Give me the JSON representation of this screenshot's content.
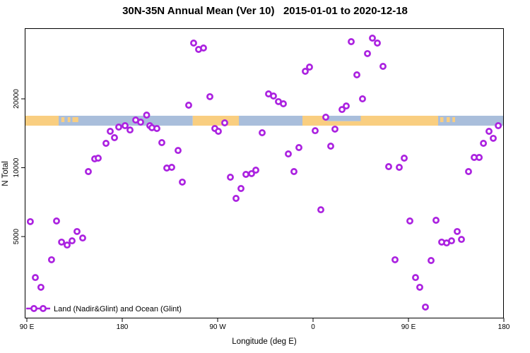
{
  "chart_data": {
    "type": "scatter",
    "title": "30N-35N Annual Mean (Ver 10)   2015-01-01 to 2020-12-18",
    "xlabel": "Longitude (deg E)",
    "ylabel": "N Total",
    "legend": "Land (Nadir&Glint) and Ocean (Glint)",
    "legend_position": "bottom-left",
    "marker": {
      "shape": "open-circle",
      "color": "#AB22E0"
    },
    "colors": {
      "point": "#AB22E0",
      "land": "#F9CE80",
      "ocean": "#A9BEDB",
      "frame": "#000000"
    },
    "x_axis": {
      "label": "Longitude (deg E)",
      "range_deg_e": [
        88,
        540.5
      ],
      "ticks": [
        {
          "value": 90,
          "label": "90 E"
        },
        {
          "value": 180,
          "label": "180"
        },
        {
          "value": 270,
          "label": "90 W"
        },
        {
          "value": 360,
          "label": "0"
        },
        {
          "value": 450,
          "label": "90 E"
        },
        {
          "value": 540,
          "label": "180"
        }
      ]
    },
    "y_axis": {
      "label": "N Total",
      "scale": "log",
      "range": [
        2200,
        40700
      ],
      "ticks": [
        {
          "value": 5000,
          "label": "5000"
        },
        {
          "value": 10000,
          "label": "10000"
        },
        {
          "value": 20000,
          "label": "20000"
        }
      ],
      "grid": false
    },
    "map_band": {
      "description": "30N-35N land/ocean map strip drawn across the plot",
      "value_top": 16870,
      "value_bottom": 15270,
      "segments": [
        {
          "from": 88.0,
          "to": 120.0,
          "surface": "land"
        },
        {
          "from": 120.0,
          "to": 246.5,
          "surface": "ocean"
        },
        {
          "from": 246.5,
          "to": 290.0,
          "surface": "land"
        },
        {
          "from": 290.0,
          "to": 350.0,
          "surface": "ocean"
        },
        {
          "from": 350.0,
          "to": 373.0,
          "surface": "land"
        },
        {
          "from": 373.0,
          "to": 405.0,
          "surface": "mixed"
        },
        {
          "from": 405.0,
          "to": 478.0,
          "surface": "land"
        },
        {
          "from": 478.0,
          "to": 540.5,
          "surface": "ocean"
        }
      ],
      "islands": [
        {
          "from": 122.5,
          "to": 125.5
        },
        {
          "from": 128.5,
          "to": 131.0
        },
        {
          "from": 133.0,
          "to": 138.5
        },
        {
          "from": 480.0,
          "to": 483.0
        },
        {
          "from": 486.0,
          "to": 489.0
        },
        {
          "from": 491.5,
          "to": 494.0
        }
      ]
    },
    "points": [
      [
        203.0,
        16980
      ],
      [
        192.7,
        16160
      ],
      [
        197.3,
        15820
      ],
      [
        206.0,
        15270
      ],
      [
        208.0,
        14950
      ],
      [
        212.7,
        14840
      ],
      [
        176.7,
        15050
      ],
      [
        182.7,
        15270
      ],
      [
        187.3,
        14620
      ],
      [
        168.7,
        14420
      ],
      [
        172.7,
        13530
      ],
      [
        164.7,
        12780
      ],
      [
        217.3,
        12870
      ],
      [
        232.7,
        11900
      ],
      [
        154.0,
        10930
      ],
      [
        157.3,
        11010
      ],
      [
        148.0,
        9620
      ],
      [
        222.0,
        9970
      ],
      [
        226.7,
        10040
      ],
      [
        236.7,
        8650
      ],
      [
        93.3,
        5810
      ],
      [
        118.0,
        5850
      ],
      [
        137.3,
        5260
      ],
      [
        142.7,
        4930
      ],
      [
        122.7,
        4730
      ],
      [
        128.0,
        4590
      ],
      [
        132.7,
        4790
      ],
      [
        113.3,
        3960
      ],
      [
        98.0,
        3310
      ],
      [
        103.3,
        3000
      ],
      [
        247.3,
        35060
      ],
      [
        252.0,
        32890
      ],
      [
        256.7,
        33360
      ],
      [
        352.7,
        26390
      ],
      [
        356.7,
        27540
      ],
      [
        262.7,
        20440
      ],
      [
        242.7,
        18760
      ],
      [
        318.0,
        21020
      ],
      [
        322.7,
        20580
      ],
      [
        327.3,
        19450
      ],
      [
        332.0,
        19030
      ],
      [
        387.3,
        17970
      ],
      [
        391.3,
        18620
      ],
      [
        396.0,
        35560
      ],
      [
        372.0,
        16630
      ],
      [
        276.7,
        15710
      ],
      [
        267.3,
        14840
      ],
      [
        270.7,
        14420
      ],
      [
        312.0,
        14220
      ],
      [
        362.0,
        14520
      ],
      [
        380.7,
        14740
      ],
      [
        346.7,
        12250
      ],
      [
        336.7,
        11490
      ],
      [
        376.7,
        12420
      ],
      [
        282.0,
        9090
      ],
      [
        296.7,
        9350
      ],
      [
        302.0,
        9420
      ],
      [
        306.0,
        9760
      ],
      [
        342.0,
        9620
      ],
      [
        292.0,
        8110
      ],
      [
        287.3,
        7340
      ],
      [
        367.3,
        6550
      ],
      [
        416.0,
        36860
      ],
      [
        420.7,
        35060
      ],
      [
        411.3,
        31530
      ],
      [
        426.0,
        27730
      ],
      [
        401.3,
        25460
      ],
      [
        406.7,
        20000
      ],
      [
        534.7,
        15270
      ],
      [
        526.0,
        14420
      ],
      [
        530.0,
        13440
      ],
      [
        520.7,
        12780
      ],
      [
        446.0,
        11010
      ],
      [
        431.3,
        10110
      ],
      [
        441.3,
        10040
      ],
      [
        512.0,
        11090
      ],
      [
        516.7,
        11090
      ],
      [
        506.7,
        9620
      ],
      [
        451.3,
        5850
      ],
      [
        476.0,
        5890
      ],
      [
        496.0,
        5260
      ],
      [
        500.0,
        4860
      ],
      [
        490.7,
        4790
      ],
      [
        486.0,
        4690
      ],
      [
        481.3,
        4730
      ],
      [
        437.3,
        3960
      ],
      [
        471.3,
        3930
      ],
      [
        456.7,
        3310
      ],
      [
        460.7,
        3000
      ],
      [
        466.0,
        2460
      ]
    ]
  }
}
